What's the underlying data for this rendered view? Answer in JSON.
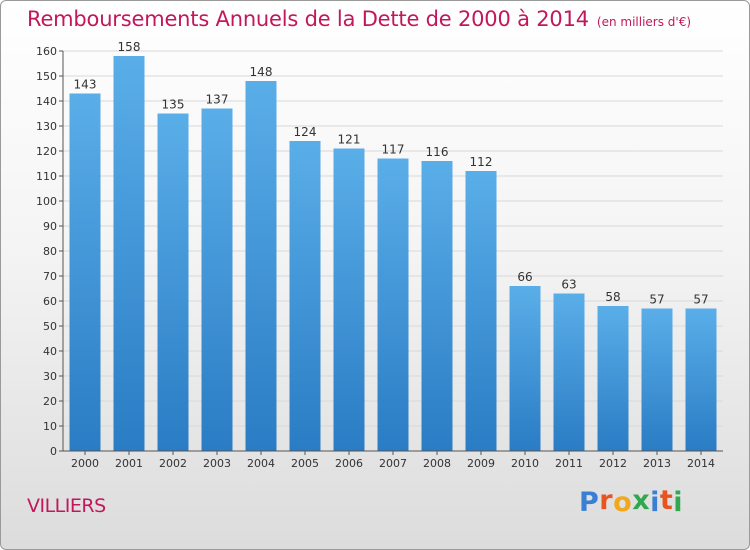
{
  "colors": {
    "title": "#c2185b",
    "bar_top": "#5aaee8",
    "bar_bottom": "#2a7cc4",
    "grid": "#d8d8d8",
    "axis": "#555555"
  },
  "location": "VILLIERS",
  "brand": {
    "text": "Proxiti",
    "letter_colors": [
      "#3a7fd4",
      "#e8531f",
      "#f2a81c",
      "#2fa84f",
      "#3a7fd4",
      "#e8531f",
      "#2fa84f"
    ]
  },
  "chart_data": {
    "type": "bar",
    "title": "Remboursements Annuels de la Dette de 2000 à 2014",
    "subtitle": "(en milliers d'€)",
    "xlabel": "",
    "ylabel": "",
    "categories": [
      "2000",
      "2001",
      "2002",
      "2003",
      "2004",
      "2005",
      "2006",
      "2007",
      "2008",
      "2009",
      "2010",
      "2011",
      "2012",
      "2013",
      "2014"
    ],
    "values": [
      143,
      158,
      135,
      137,
      148,
      124,
      121,
      117,
      116,
      112,
      66,
      63,
      58,
      57,
      57
    ],
    "ylim": [
      0,
      160
    ],
    "yticks": [
      0,
      10,
      20,
      30,
      40,
      50,
      60,
      70,
      80,
      90,
      100,
      110,
      120,
      130,
      140,
      150,
      160
    ],
    "grid": true,
    "legend": "none"
  }
}
